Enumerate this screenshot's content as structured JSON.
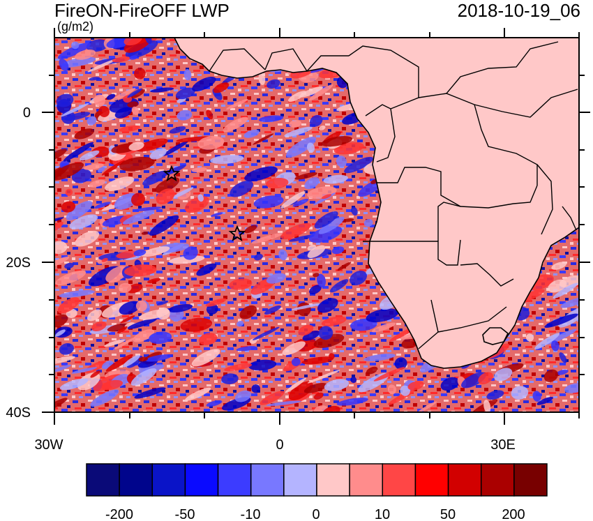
{
  "title": "FireON-FireOFF LWP",
  "units": "(g/m2)",
  "timestamp": "2018-10-19_06",
  "axes": {
    "lon_labels": [
      "30W",
      "0",
      "30E"
    ],
    "lat_labels": [
      "0",
      "20S",
      "40S"
    ]
  },
  "colorbar": {
    "colors": [
      "#0a0a78",
      "#00058c",
      "#0a14c8",
      "#0a0aff",
      "#3c3cff",
      "#7878ff",
      "#b4b4ff",
      "#ffc8c8",
      "#ff8c8c",
      "#ff4646",
      "#ff0000",
      "#d20000",
      "#aa0000",
      "#780000"
    ],
    "labels": [
      "-200",
      "-50",
      "-10",
      "0",
      "10",
      "50",
      "200"
    ]
  },
  "markers": [
    "star-marker",
    "star-marker"
  ],
  "palette": {
    "ocean_mix": [
      "#0000c8",
      "#1e1edc",
      "#3232ff",
      "#7878ff",
      "#b4b4ff",
      "#ffc8c8",
      "#ff8c8c",
      "#ff3232",
      "#dc0000",
      "#aa0000"
    ],
    "land": "#ffc8c8",
    "coast": "#000000"
  }
}
